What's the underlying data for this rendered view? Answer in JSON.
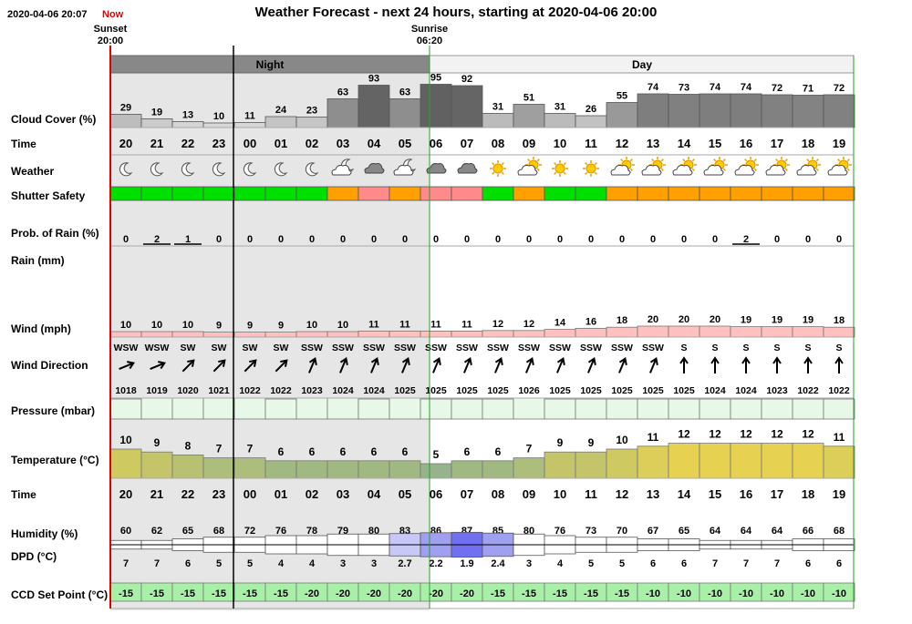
{
  "header": {
    "timestamp": "2020-04-06 20:07",
    "now_label": "Now",
    "title": "Weather Forecast - next 24 hours, starting at 2020-04-06 20:00",
    "sunset_label": "Sunset",
    "sunset_time": "20:00",
    "sunrise_label": "Sunrise",
    "sunrise_time": "06:20",
    "night_label": "Night",
    "day_label": "Day"
  },
  "row_labels": {
    "cloud": "Cloud Cover (%)",
    "time": "Time",
    "weather": "Weather",
    "shutter": "Shutter Safety",
    "prob_rain": "Prob. of Rain (%)",
    "rain": "Rain (mm)",
    "wind": "Wind (mph)",
    "wind_dir": "Wind Direction",
    "pressure": "Pressure (mbar)",
    "temperature": "Temperature (°C)",
    "time2": "Time",
    "humidity": "Humidity (%)",
    "dpd": "DPD (°C)",
    "ccd": "CCD Set Point (°C)"
  },
  "colors": {
    "now_line": "#e00000",
    "sun_line": "#2e9a2e",
    "night_bg": "#e6e6e6",
    "shutter_green": "#00e000",
    "shutter_orange": "#ffa000",
    "shutter_red": "#ff8a8a",
    "wind_bar": "#ffc0c0",
    "pressure_bar": "#e8f8e8",
    "ccd_bar": "#a8f0a8",
    "dpd_bar": "#9090f0"
  },
  "chart_data": {
    "type": "table",
    "hours": [
      "20",
      "21",
      "22",
      "23",
      "00",
      "01",
      "02",
      "03",
      "04",
      "05",
      "06",
      "07",
      "08",
      "09",
      "10",
      "11",
      "12",
      "13",
      "14",
      "15",
      "16",
      "17",
      "18",
      "19"
    ],
    "cloud_cover": [
      29,
      19,
      13,
      10,
      11,
      24,
      23,
      63,
      93,
      63,
      95,
      92,
      31,
      51,
      31,
      26,
      55,
      74,
      73,
      74,
      74,
      72,
      71,
      72
    ],
    "weather": [
      "moon",
      "moon",
      "moon",
      "moon",
      "moon",
      "moon",
      "moon",
      "moon-cloud",
      "cloud",
      "moon-cloud",
      "cloud",
      "cloud",
      "sun",
      "sun-cloud",
      "sun",
      "sun",
      "sun-cloud",
      "sun-cloud",
      "sun-cloud",
      "sun-cloud",
      "sun-cloud",
      "sun-cloud",
      "sun-cloud",
      "sun-cloud"
    ],
    "shutter_safety": [
      "green",
      "green",
      "green",
      "green",
      "green",
      "green",
      "green",
      "orange",
      "red",
      "orange",
      "red",
      "red",
      "green",
      "orange",
      "green",
      "green",
      "orange",
      "orange",
      "orange",
      "orange",
      "orange",
      "orange",
      "orange",
      "orange"
    ],
    "prob_rain": [
      0,
      2,
      1,
      0,
      0,
      0,
      0,
      0,
      0,
      0,
      0,
      0,
      0,
      0,
      0,
      0,
      0,
      0,
      0,
      0,
      2,
      0,
      0,
      0
    ],
    "rain": [
      0,
      0,
      0,
      0,
      0,
      0,
      0,
      0,
      0,
      0,
      0,
      0,
      0,
      0,
      0,
      0,
      0,
      0,
      0,
      0,
      0,
      0,
      0,
      0
    ],
    "wind_speed": [
      10,
      10,
      10,
      9,
      9,
      9,
      10,
      10,
      11,
      11,
      11,
      11,
      12,
      12,
      14,
      16,
      18,
      20,
      20,
      20,
      19,
      19,
      19,
      18
    ],
    "wind_direction": [
      "WSW",
      "WSW",
      "SW",
      "SW",
      "SW",
      "SW",
      "SSW",
      "SSW",
      "SSW",
      "SSW",
      "SSW",
      "SSW",
      "SSW",
      "SSW",
      "SSW",
      "SSW",
      "SSW",
      "SSW",
      "S",
      "S",
      "S",
      "S",
      "S",
      "S"
    ],
    "wind_dir_deg": [
      247.5,
      247.5,
      225,
      225,
      225,
      225,
      202.5,
      202.5,
      202.5,
      202.5,
      202.5,
      202.5,
      202.5,
      202.5,
      202.5,
      202.5,
      202.5,
      202.5,
      180,
      180,
      180,
      180,
      180,
      180
    ],
    "pressure": [
      1018,
      1019,
      1020,
      1021,
      1022,
      1022,
      1023,
      1024,
      1024,
      1025,
      1025,
      1025,
      1025,
      1026,
      1025,
      1025,
      1025,
      1025,
      1025,
      1024,
      1024,
      1023,
      1022,
      1022
    ],
    "temperature": [
      10,
      9,
      8,
      7,
      7,
      6,
      6,
      6,
      6,
      6,
      5,
      6,
      6,
      7,
      9,
      9,
      10,
      11,
      12,
      12,
      12,
      12,
      12,
      11
    ],
    "humidity": [
      60,
      62,
      65,
      68,
      72,
      76,
      78,
      79,
      80,
      83,
      86,
      87,
      85,
      80,
      76,
      73,
      70,
      67,
      65,
      64,
      64,
      64,
      66,
      68
    ],
    "dpd": [
      "7",
      "7",
      "6",
      "5",
      "5",
      "4",
      "4",
      "3",
      "3",
      "2.7",
      "2.2",
      "1.9",
      "2.4",
      "3",
      "4",
      "5",
      "5",
      "6",
      "6",
      "7",
      "7",
      "7",
      "6",
      "6"
    ],
    "ccd_set_point": [
      -15,
      -15,
      -15,
      -15,
      -15,
      -15,
      -20,
      -20,
      -20,
      -20,
      -20,
      -20,
      -15,
      -15,
      -15,
      -15,
      -15,
      -10,
      -10,
      -10,
      -10,
      -10,
      -10,
      -10
    ]
  }
}
